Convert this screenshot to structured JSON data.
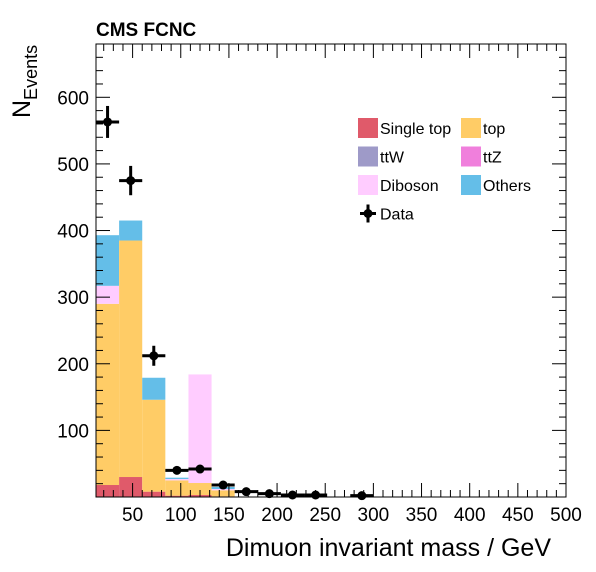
{
  "chart_data": {
    "type": "bar",
    "stacked": true,
    "title": "CMS FCNC",
    "xlabel": "Dimuon invariant mass / GeV",
    "ylabel": {
      "main": "N",
      "sub": "Events"
    },
    "xlim": [
      12,
      500
    ],
    "ylim": [
      0,
      680
    ],
    "grid": false,
    "legend_position": "top-right",
    "x_ticks": [
      50,
      100,
      150,
      200,
      250,
      300,
      350,
      400,
      450,
      500
    ],
    "y_ticks": [
      100,
      200,
      300,
      400,
      500,
      600
    ],
    "bin_edges": [
      12,
      36,
      60,
      84,
      108,
      132,
      156
    ],
    "series": [
      {
        "name": "Single top",
        "color": "#e05a6a",
        "values": [
          18,
          30,
          8,
          2,
          3,
          1
        ]
      },
      {
        "name": "top",
        "color": "#ffcc66",
        "values": [
          272,
          355,
          138,
          23,
          18,
          9
        ]
      },
      {
        "name": "ttW",
        "color": "#9e9ac8",
        "values": [
          0,
          0,
          0,
          0,
          0,
          0
        ]
      },
      {
        "name": "ttZ",
        "color": "#f07fdc",
        "values": [
          0,
          0,
          0,
          0,
          0,
          0
        ]
      },
      {
        "name": "Diboson",
        "color": "#ffccff",
        "values": [
          27,
          0,
          0,
          2,
          163,
          2
        ]
      },
      {
        "name": "Others",
        "color": "#64bee8",
        "values": [
          76,
          30,
          33,
          2,
          0,
          3
        ]
      }
    ],
    "data_series": {
      "name": "Data",
      "points": [
        {
          "x": 24,
          "y": 563,
          "xerr": 12,
          "yerr": 24
        },
        {
          "x": 48,
          "y": 475,
          "xerr": 12,
          "yerr": 22
        },
        {
          "x": 72,
          "y": 212,
          "xerr": 12,
          "yerr": 15
        },
        {
          "x": 96,
          "y": 40,
          "xerr": 12,
          "yerr": 6
        },
        {
          "x": 120,
          "y": 42,
          "xerr": 12,
          "yerr": 6
        },
        {
          "x": 144,
          "y": 18,
          "xerr": 12,
          "yerr": 4
        },
        {
          "x": 168,
          "y": 8,
          "xerr": 12,
          "yerr": 3
        },
        {
          "x": 192,
          "y": 5,
          "xerr": 12,
          "yerr": 2
        },
        {
          "x": 216,
          "y": 3,
          "xerr": 12,
          "yerr": 2
        },
        {
          "x": 240,
          "y": 3,
          "xerr": 12,
          "yerr": 2
        },
        {
          "x": 288,
          "y": 2,
          "xerr": 12,
          "yerr": 1
        }
      ]
    },
    "legend_order": [
      "Single top",
      "top",
      "ttW",
      "ttZ",
      "Diboson",
      "Others",
      "Data"
    ]
  }
}
